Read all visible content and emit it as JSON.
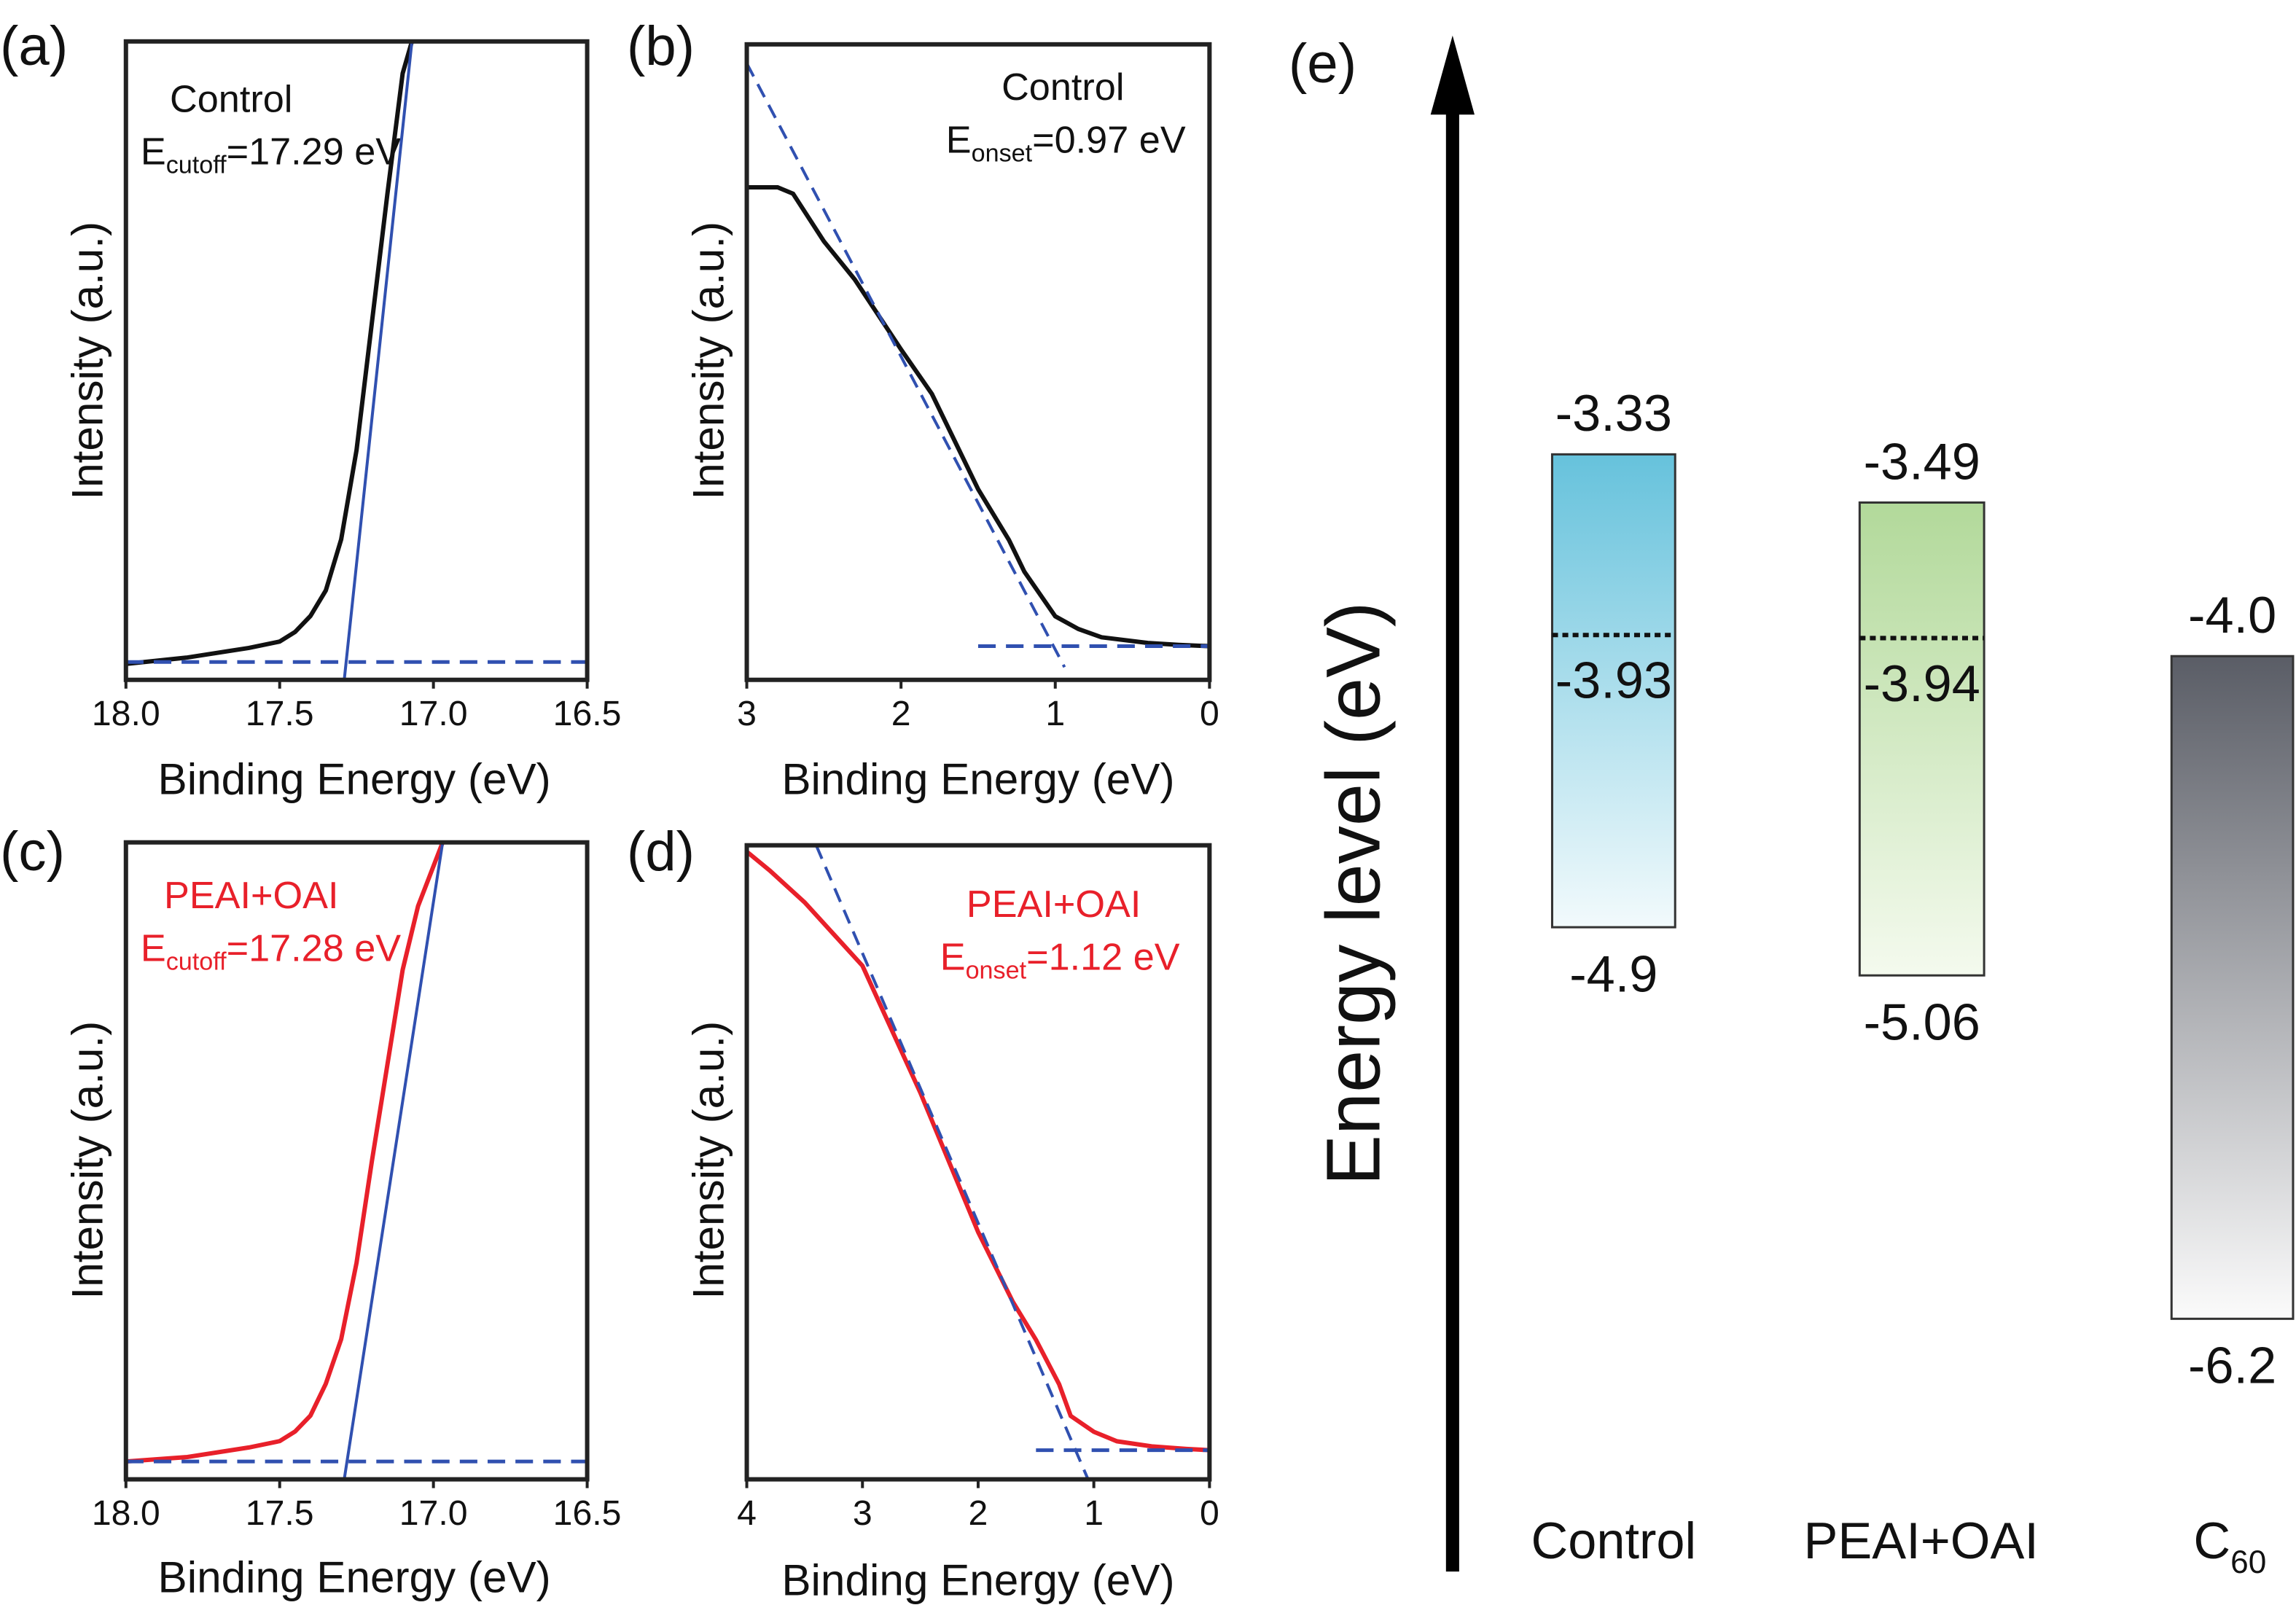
{
  "colors": {
    "black_curve": "#111111",
    "red_curve": "#e8202a",
    "fit_line": "#3050b0",
    "control_band": [
      "#66c2dc",
      "#f2fafc"
    ],
    "peai_band": [
      "#b2d99a",
      "#f4faee"
    ],
    "c60_band": [
      "#5a5d66",
      "#fbfbfb"
    ]
  },
  "chart_data": [
    {
      "panel": "(a)",
      "type": "line",
      "xlabel": "Binding Energy (eV)",
      "ylabel": "Intensity (a.u.)",
      "xlim": [
        18.0,
        16.5
      ],
      "x_reversed": true,
      "xticks": [
        "18.0",
        "17.5",
        "17.0",
        "16.5"
      ],
      "annotation": {
        "sample": "Control",
        "E": "E",
        "sub": "cutoff",
        "value": "=17.29 eV"
      },
      "series": [
        {
          "x": [
            18.0,
            17.8,
            17.6,
            17.5,
            17.45,
            17.4,
            17.35,
            17.3,
            17.25,
            17.2,
            17.15,
            17.1,
            17.07
          ],
          "y": [
            0.025,
            0.035,
            0.05,
            0.06,
            0.075,
            0.1,
            0.14,
            0.22,
            0.36,
            0.56,
            0.76,
            0.95,
            1.0
          ]
        }
      ],
      "fit": {
        "x": [
          17.29,
          17.07
        ],
        "y": [
          0.0,
          1.0
        ]
      },
      "baseline": {
        "x": [
          18.0,
          16.5
        ],
        "y": [
          0.028,
          0.028
        ]
      }
    },
    {
      "panel": "(b)",
      "type": "line",
      "xlabel": "Binding Energy (eV)",
      "ylabel": "Intensity (a.u.)",
      "xlim": [
        3,
        0
      ],
      "x_reversed": true,
      "xticks": [
        "3",
        "2",
        "1",
        "0"
      ],
      "annotation": {
        "sample": "Control",
        "E": "E",
        "sub": "onset",
        "value": "=0.97 eV"
      },
      "series": [
        {
          "x": [
            3.0,
            2.8,
            2.7,
            2.5,
            2.3,
            2.0,
            1.8,
            1.5,
            1.3,
            1.2,
            1.0,
            0.85,
            0.7,
            0.4,
            0.2,
            0.0
          ],
          "y": [
            0.775,
            0.775,
            0.765,
            0.69,
            0.63,
            0.52,
            0.45,
            0.3,
            0.22,
            0.17,
            0.1,
            0.08,
            0.067,
            0.058,
            0.055,
            0.053
          ]
        }
      ],
      "fit": {
        "x": [
          3.0,
          0.94
        ],
        "y": [
          0.97,
          0.02
        ]
      },
      "baseline": {
        "x": [
          1.5,
          0.0
        ],
        "y": [
          0.053,
          0.053
        ]
      }
    },
    {
      "panel": "(c)",
      "type": "line",
      "xlabel": "Binding Energy (eV)",
      "ylabel": "Intensity (a.u.)",
      "xlim": [
        18.0,
        16.5
      ],
      "x_reversed": true,
      "xticks": [
        "18.0",
        "17.5",
        "17.0",
        "16.5"
      ],
      "annotation": {
        "sample": "PEAI+OAI",
        "E": "E",
        "sub": "cutoff",
        "value": "=17.28 eV"
      },
      "series": [
        {
          "x": [
            18.0,
            17.8,
            17.6,
            17.5,
            17.45,
            17.4,
            17.35,
            17.3,
            17.25,
            17.2,
            17.15,
            17.1,
            17.05,
            16.97
          ],
          "y": [
            0.028,
            0.035,
            0.05,
            0.06,
            0.075,
            0.1,
            0.15,
            0.22,
            0.34,
            0.5,
            0.65,
            0.8,
            0.9,
            1.0
          ]
        }
      ],
      "fit": {
        "x": [
          17.29,
          16.97
        ],
        "y": [
          0.0,
          1.0
        ]
      },
      "baseline": {
        "x": [
          18.0,
          16.5
        ],
        "y": [
          0.028,
          0.028
        ]
      }
    },
    {
      "panel": "(d)",
      "type": "line",
      "xlabel": "Binding Energy (eV)",
      "ylabel": "Intensity (a.u.)",
      "xlim": [
        4,
        0
      ],
      "x_reversed": true,
      "xticks": [
        "4",
        "3",
        "2",
        "1",
        "0"
      ],
      "annotation": {
        "sample": "PEAI+OAI",
        "E": "E",
        "sub": "onset",
        "value": "=1.12 eV"
      },
      "series": [
        {
          "x": [
            4.0,
            3.8,
            3.5,
            3.2,
            3.0,
            2.5,
            2.0,
            1.7,
            1.5,
            1.3,
            1.2,
            1.0,
            0.8,
            0.5,
            0.2,
            0.0
          ],
          "y": [
            0.99,
            0.96,
            0.91,
            0.85,
            0.81,
            0.61,
            0.39,
            0.28,
            0.22,
            0.15,
            0.1,
            0.075,
            0.06,
            0.052,
            0.048,
            0.046
          ]
        }
      ],
      "fit": {
        "x": [
          3.4,
          1.05
        ],
        "y": [
          1.0,
          0.0
        ]
      },
      "baseline": {
        "x": [
          1.5,
          0.0
        ],
        "y": [
          0.046,
          0.046
        ]
      }
    },
    {
      "panel": "(e)",
      "type": "bar",
      "ylabel": "Energy level (eV)",
      "categories": [
        "Control",
        "PEAI+OAI",
        "C60"
      ],
      "category_labels": [
        {
          "main": "Control",
          "sub": ""
        },
        {
          "main": "PEAI+OAI",
          "sub": ""
        },
        {
          "main": "C",
          "sub": "60"
        }
      ],
      "bars": [
        {
          "top": -3.33,
          "bottom": -4.9,
          "fermi": -3.93,
          "top_label": "-3.33",
          "bottom_label": "-4.9",
          "fermi_label": "-3.93"
        },
        {
          "top": -3.49,
          "bottom": -5.06,
          "fermi": -3.94,
          "top_label": "-3.49",
          "bottom_label": "-5.06",
          "fermi_label": "-3.94"
        },
        {
          "top": -4.0,
          "bottom": -6.2,
          "top_label": "-4.0",
          "bottom_label": "-6.2"
        }
      ]
    }
  ]
}
